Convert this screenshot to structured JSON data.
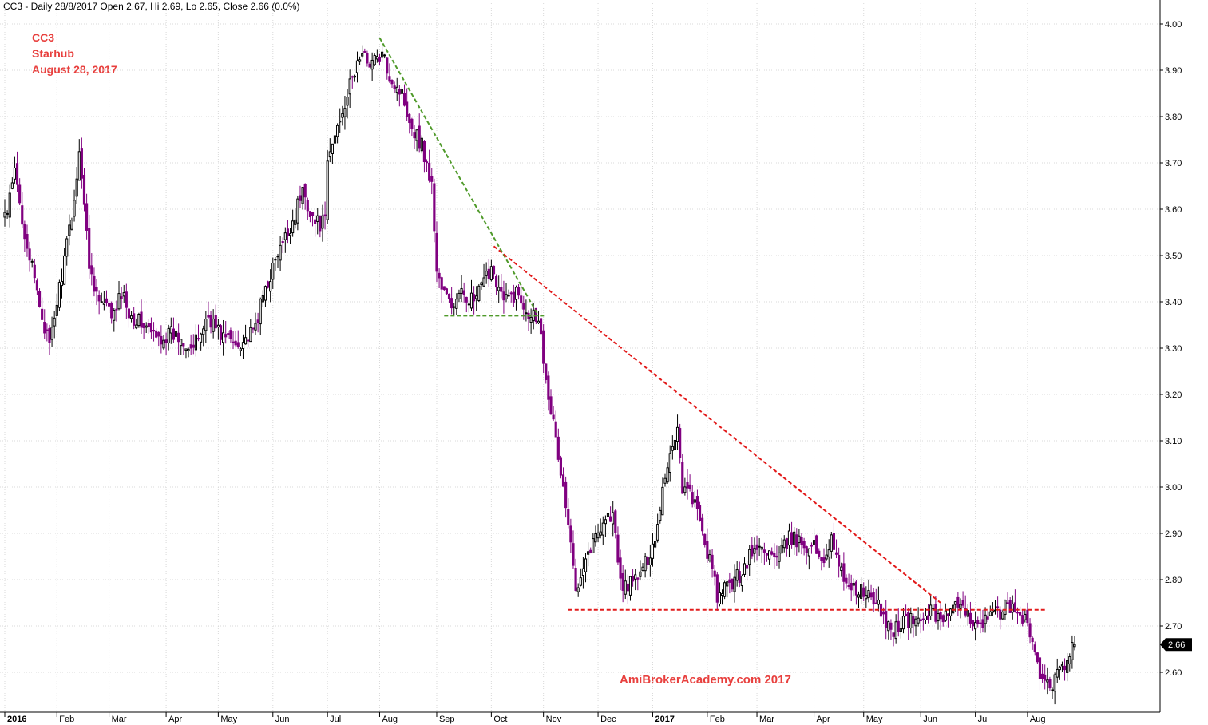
{
  "header": {
    "text": "CC3 - Daily 28/8/2017 Open 2.67, Hi 2.69, Lo 2.65, Close 2.66 (0.0%)"
  },
  "annotations": {
    "symbol": "CC3",
    "name": "Starhub",
    "date": "August 28, 2017",
    "watermark": "AmiBrokerAcademy.com  2017"
  },
  "colors": {
    "bull": "#000000",
    "bear": "#800080",
    "trend_green": "#4f9a2a",
    "trend_red": "#e21b1b",
    "grid": "#d9d9d9",
    "label_red": "#e8403e"
  },
  "chart_data": {
    "type": "candlestick",
    "ylim": [
      2.53,
      4.03
    ],
    "yticks": [
      "4.00",
      "3.90",
      "3.80",
      "3.70",
      "3.60",
      "3.50",
      "3.40",
      "3.30",
      "3.20",
      "3.10",
      "3.00",
      "2.90",
      "2.80",
      "2.70",
      "2.60"
    ],
    "xticks": [
      "2016",
      "Feb",
      "Mar",
      "Apr",
      "May",
      "Jun",
      "Jul",
      "Aug",
      "Sep",
      "Oct",
      "Nov",
      "Dec",
      "2017",
      "Feb",
      "Mar",
      "Apr",
      "May",
      "Jun",
      "Jul",
      "Aug"
    ],
    "bold_xticks": [
      "2016",
      "2017"
    ],
    "last_price_label": "2.66",
    "last_price": 2.66,
    "price_anchors": [
      [
        "2016-01-04",
        3.59
      ],
      [
        "2016-01-07",
        3.68
      ],
      [
        "2016-01-12",
        3.58
      ],
      [
        "2016-01-18",
        3.47
      ],
      [
        "2016-01-22",
        3.37
      ],
      [
        "2016-01-27",
        3.3
      ],
      [
        "2016-02-01",
        3.4
      ],
      [
        "2016-02-06",
        3.52
      ],
      [
        "2016-02-11",
        3.66
      ],
      [
        "2016-02-13",
        3.74
      ],
      [
        "2016-02-18",
        3.48
      ],
      [
        "2016-02-24",
        3.4
      ],
      [
        "2016-03-03",
        3.37
      ],
      [
        "2016-03-08",
        3.42
      ],
      [
        "2016-03-14",
        3.37
      ],
      [
        "2016-03-21",
        3.35
      ],
      [
        "2016-03-28",
        3.32
      ],
      [
        "2016-04-05",
        3.33
      ],
      [
        "2016-04-12",
        3.32
      ],
      [
        "2016-04-18",
        3.3
      ],
      [
        "2016-04-26",
        3.37
      ],
      [
        "2016-05-03",
        3.33
      ],
      [
        "2016-05-11",
        3.31
      ],
      [
        "2016-05-20",
        3.33
      ],
      [
        "2016-05-28",
        3.43
      ],
      [
        "2016-06-04",
        3.5
      ],
      [
        "2016-06-11",
        3.56
      ],
      [
        "2016-06-17",
        3.64
      ],
      [
        "2016-06-24",
        3.57
      ],
      [
        "2016-06-30",
        3.57
      ],
      [
        "2016-07-03",
        3.7
      ],
      [
        "2016-07-08",
        3.8
      ],
      [
        "2016-07-15",
        3.88
      ],
      [
        "2016-07-20",
        3.93
      ],
      [
        "2016-07-27",
        3.92
      ],
      [
        "2016-08-02",
        3.93
      ],
      [
        "2016-08-08",
        3.88
      ],
      [
        "2016-08-14",
        3.85
      ],
      [
        "2016-08-18",
        3.78
      ],
      [
        "2016-08-24",
        3.74
      ],
      [
        "2016-08-30",
        3.65
      ],
      [
        "2016-09-01",
        3.47
      ],
      [
        "2016-09-05",
        3.43
      ],
      [
        "2016-09-10",
        3.39
      ],
      [
        "2016-09-16",
        3.42
      ],
      [
        "2016-09-22",
        3.4
      ],
      [
        "2016-09-28",
        3.44
      ],
      [
        "2016-10-03",
        3.48
      ],
      [
        "2016-10-10",
        3.4
      ],
      [
        "2016-10-17",
        3.42
      ],
      [
        "2016-10-24",
        3.38
      ],
      [
        "2016-10-28",
        3.37
      ],
      [
        "2016-11-01",
        3.28
      ],
      [
        "2016-11-05",
        3.17
      ],
      [
        "2016-11-10",
        3.03
      ],
      [
        "2016-11-14",
        2.96
      ],
      [
        "2016-11-18",
        2.78
      ],
      [
        "2016-11-23",
        2.84
      ],
      [
        "2016-11-29",
        2.88
      ],
      [
        "2016-12-05",
        2.93
      ],
      [
        "2016-12-10",
        2.94
      ],
      [
        "2016-12-14",
        2.79
      ],
      [
        "2016-12-20",
        2.79
      ],
      [
        "2016-12-27",
        2.82
      ],
      [
        "2017-01-03",
        2.89
      ],
      [
        "2017-01-09",
        3.03
      ],
      [
        "2017-01-16",
        3.13
      ],
      [
        "2017-01-18",
        3.0
      ],
      [
        "2017-01-24",
        2.98
      ],
      [
        "2017-02-03",
        2.82
      ],
      [
        "2017-02-07",
        2.76
      ],
      [
        "2017-02-14",
        2.79
      ],
      [
        "2017-02-20",
        2.81
      ],
      [
        "2017-02-27",
        2.86
      ],
      [
        "2017-03-06",
        2.87
      ],
      [
        "2017-03-13",
        2.84
      ],
      [
        "2017-03-20",
        2.89
      ],
      [
        "2017-03-27",
        2.88
      ],
      [
        "2017-04-03",
        2.87
      ],
      [
        "2017-04-07",
        2.84
      ],
      [
        "2017-04-12",
        2.9
      ],
      [
        "2017-04-17",
        2.82
      ],
      [
        "2017-04-25",
        2.78
      ],
      [
        "2017-05-02",
        2.77
      ],
      [
        "2017-05-09",
        2.74
      ],
      [
        "2017-05-16",
        2.69
      ],
      [
        "2017-05-23",
        2.71
      ],
      [
        "2017-05-30",
        2.71
      ],
      [
        "2017-06-07",
        2.73
      ],
      [
        "2017-06-14",
        2.72
      ],
      [
        "2017-06-21",
        2.74
      ],
      [
        "2017-06-28",
        2.72
      ],
      [
        "2017-07-05",
        2.71
      ],
      [
        "2017-07-12",
        2.72
      ],
      [
        "2017-07-19",
        2.74
      ],
      [
        "2017-07-26",
        2.73
      ],
      [
        "2017-07-31",
        2.72
      ],
      [
        "2017-08-03",
        2.66
      ],
      [
        "2017-08-07",
        2.61
      ],
      [
        "2017-08-11",
        2.57
      ],
      [
        "2017-08-16",
        2.58
      ],
      [
        "2017-08-22",
        2.62
      ],
      [
        "2017-08-28",
        2.66
      ]
    ],
    "trendlines": [
      {
        "color": "green",
        "from": [
          "2016-08-01",
          3.97
        ],
        "to": [
          "2016-10-28",
          3.37
        ]
      },
      {
        "color": "green",
        "from": [
          "2016-09-06",
          3.37
        ],
        "to": [
          "2016-11-02",
          3.37
        ]
      },
      {
        "color": "red",
        "from": [
          "2016-10-04",
          3.52
        ],
        "to": [
          "2017-06-13",
          2.75
        ]
      },
      {
        "color": "red",
        "from": [
          "2016-11-15",
          2.735
        ],
        "to": [
          "2017-08-10",
          2.735
        ]
      }
    ]
  }
}
